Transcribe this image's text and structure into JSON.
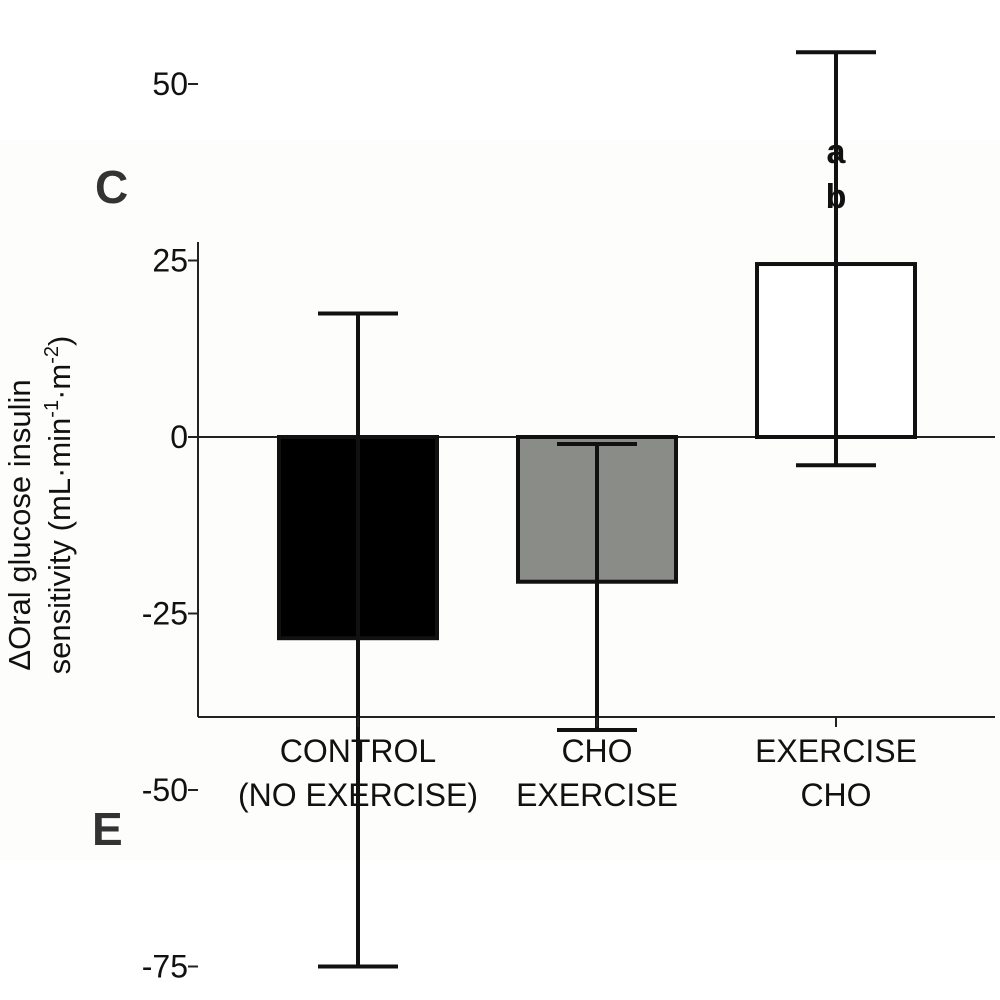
{
  "panel_labels": {
    "top": "C",
    "bottom": "E"
  },
  "chart_data": {
    "type": "bar",
    "ylabel_line1": "ΔOral glucose insulin",
    "ylabel_line2_parts": [
      "sensitivity (mL·min",
      "-1",
      "·m",
      "-2",
      ")"
    ],
    "ylim": [
      -80,
      57
    ],
    "yticks": [
      50,
      25,
      0,
      -25,
      -50,
      -75
    ],
    "ytick_labels": [
      "50",
      "25",
      "0",
      "-25",
      "-50",
      "-75"
    ],
    "categories": [
      {
        "line1": "CONTROL",
        "line2": "(NO EXERCISE)"
      },
      {
        "line1": "CHO",
        "line2": "EXERCISE"
      },
      {
        "line1": "EXERCISE",
        "line2": "CHO"
      }
    ],
    "values": [
      -28.5,
      -20.5,
      24.5
    ],
    "error_upper": [
      17.5,
      -1,
      54.5
    ],
    "error_lower": [
      -75,
      -41.5,
      -4
    ],
    "bar_colors": [
      "#000000",
      "#8a8d87",
      "#ffffff"
    ],
    "annotations": [
      {
        "category_index": 2,
        "lines": [
          "a",
          "b"
        ]
      }
    ]
  }
}
